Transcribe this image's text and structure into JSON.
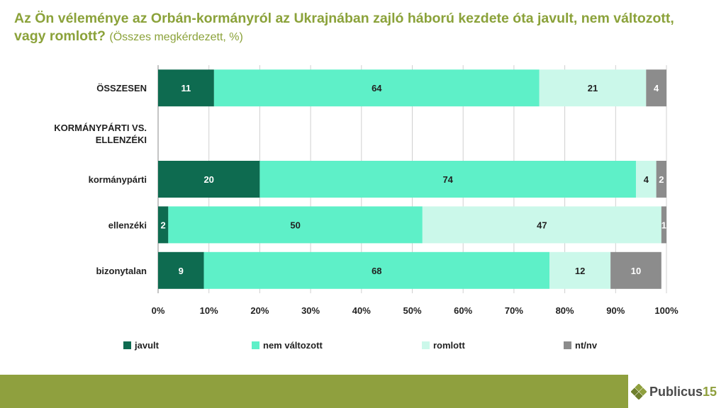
{
  "title": {
    "main": "Az Ön véleménye az Orbán-kormányról az Ukrajnában zajló háború kezdete óta javult, nem változott, vagy romlott?",
    "subtitle": "(Összes megkérdezett, %)"
  },
  "colors": {
    "javult": "#0e6b50",
    "nem_valtozott": "#5ef0c8",
    "romlott": "#cbf8ea",
    "nt_nv": "#8c8c8c",
    "accent": "#8fa03e"
  },
  "chart_data": {
    "type": "bar",
    "orientation": "horizontal",
    "stacked": true,
    "categories": [
      "ÖSSZESEN",
      "KORMÁNYPÁRTI VS. ELLENZÉKI",
      "kormánypárti",
      "ellenzéki",
      "bizonytalan"
    ],
    "category_lines": [
      [
        "ÖSSZESEN"
      ],
      [
        "KORMÁNYPÁRTI VS.",
        "ELLENZÉKI"
      ],
      [
        "kormánypárti"
      ],
      [
        "ellenzéki"
      ],
      [
        "bizonytalan"
      ]
    ],
    "series": [
      {
        "name": "javult",
        "key": "javult",
        "values": [
          11,
          null,
          20,
          2,
          9
        ]
      },
      {
        "name": "nem változott",
        "key": "nem_valtozott",
        "values": [
          64,
          null,
          74,
          50,
          68
        ]
      },
      {
        "name": "romlott",
        "key": "romlott",
        "values": [
          21,
          null,
          4,
          47,
          12
        ]
      },
      {
        "name": "nt/nv",
        "key": "nt_nv",
        "values": [
          4,
          null,
          2,
          1,
          10
        ]
      }
    ],
    "xlim": [
      0,
      100
    ],
    "xticks": [
      "0%",
      "10%",
      "20%",
      "30%",
      "40%",
      "50%",
      "60%",
      "70%",
      "80%",
      "90%",
      "100%"
    ],
    "legend_position": "bottom",
    "grid": true
  },
  "logo": {
    "brand": "Publicus",
    "number": "15"
  }
}
